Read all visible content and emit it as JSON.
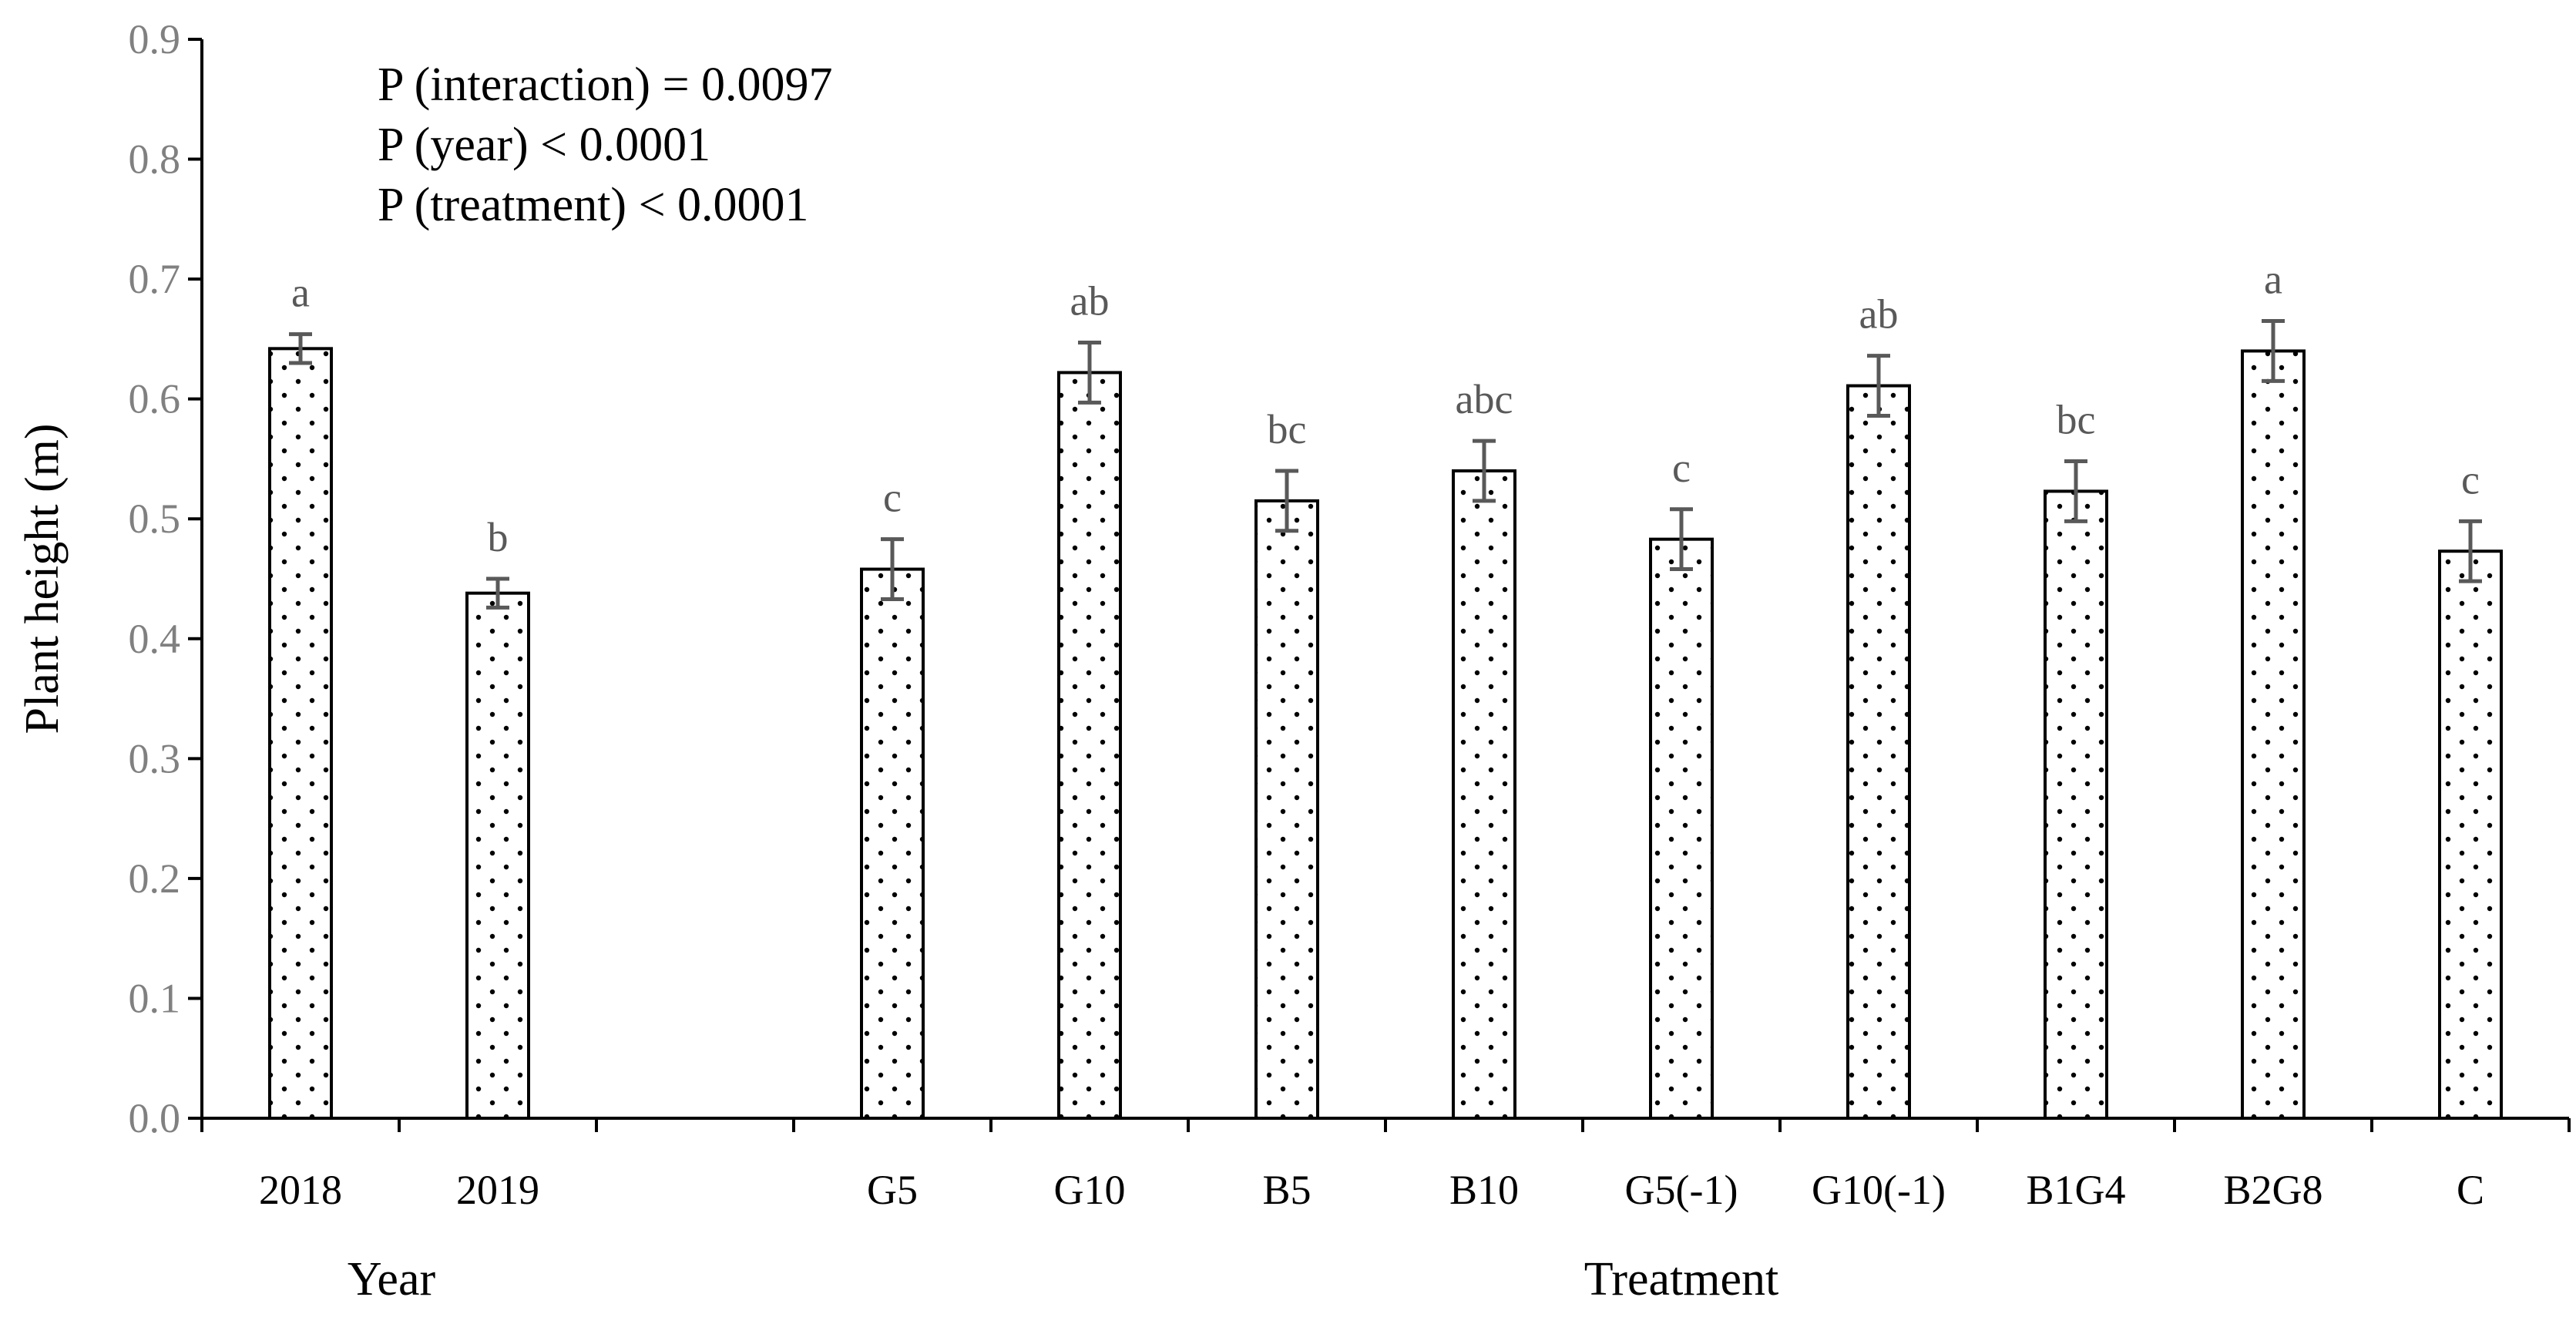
{
  "chart_data": {
    "type": "bar",
    "ylabel": "Plant height (m)",
    "ylim": [
      0,
      0.9
    ],
    "yticks": [
      "0.0",
      "0.1",
      "0.2",
      "0.3",
      "0.4",
      "0.5",
      "0.6",
      "0.7",
      "0.8",
      "0.9"
    ],
    "groups": [
      {
        "label": "Year",
        "categories": [
          "2018",
          "2019"
        ],
        "values": [
          0.642,
          0.438
        ],
        "errors": [
          0.012,
          0.012
        ],
        "letters": [
          "a",
          "b"
        ]
      },
      {
        "label": "Treatment",
        "categories": [
          "G5",
          "G10",
          "B5",
          "B10",
          "G5(-1)",
          "G10(-1)",
          "B1G4",
          "B2G8",
          "C"
        ],
        "values": [
          0.458,
          0.622,
          0.515,
          0.54,
          0.483,
          0.611,
          0.523,
          0.64,
          0.473
        ],
        "errors": [
          0.025,
          0.025,
          0.025,
          0.025,
          0.025,
          0.025,
          0.025,
          0.025,
          0.025
        ],
        "letters": [
          "c",
          "ab",
          "bc",
          "abc",
          "c",
          "ab",
          "bc",
          "a",
          "c"
        ]
      }
    ],
    "annotations": [
      "P (interaction) = 0.0097",
      "P (year) < 0.0001",
      "P (treatment) < 0.0001"
    ],
    "bar_fill": "dotted",
    "error_bar_color": "#595959",
    "grid": false,
    "legend": "none"
  }
}
